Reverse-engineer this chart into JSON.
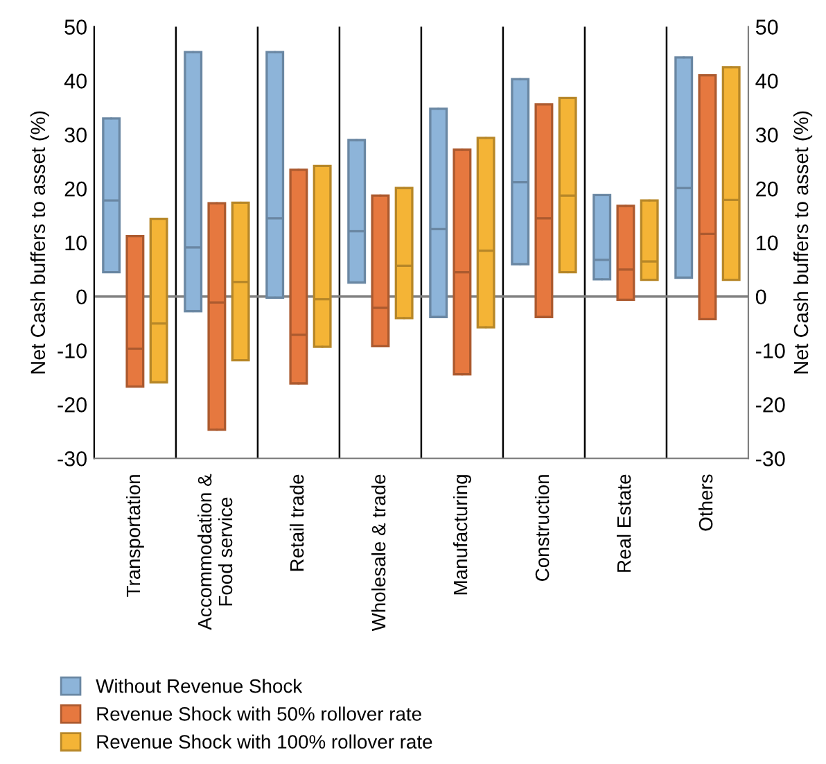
{
  "chart_data": {
    "type": "box",
    "ylabel": "Net Cash buffers to asset (%)",
    "y2label": "Net Cash buffers to asset (%)",
    "categories": [
      "Transportation",
      "Accommodation &\nFood service",
      "Retail trade",
      "Wholesale & trade",
      "Manufacturing",
      "Construction",
      "Real Estate",
      "Others"
    ],
    "ylim": [
      -30,
      50
    ],
    "yticks": [
      -30,
      -20,
      -10,
      0,
      10,
      20,
      30,
      40,
      50
    ],
    "y2lim": [
      -30,
      50
    ],
    "y2ticks": [
      -30,
      -20,
      -10,
      0,
      10,
      20,
      30,
      40,
      50
    ],
    "ref_lines": [
      {
        "axis": "y",
        "value": 0,
        "color": "#7f7f7f"
      }
    ],
    "legend": "bottom left",
    "grid": false,
    "series": [
      {
        "name": "Without Revenue Shock",
        "color": "#8db4d9",
        "boxes": [
          {
            "low": 4.5,
            "q1": 4.5,
            "median": 17.8,
            "q3": 33.0,
            "high": 33.0
          },
          {
            "low": -2.7,
            "q1": -2.7,
            "median": 9.1,
            "q3": 45.3,
            "high": 45.3
          },
          {
            "low": -0.2,
            "q1": -0.2,
            "median": 14.5,
            "q3": 45.3,
            "high": 45.3
          },
          {
            "low": 2.6,
            "q1": 2.6,
            "median": 12.1,
            "q3": 29.0,
            "high": 29.0
          },
          {
            "low": -3.8,
            "q1": -3.8,
            "median": 12.5,
            "q3": 34.8,
            "high": 34.8
          },
          {
            "low": 6.0,
            "q1": 6.0,
            "median": 21.2,
            "q3": 40.3,
            "high": 40.3
          },
          {
            "low": 3.2,
            "q1": 3.2,
            "median": 6.8,
            "q3": 18.8,
            "high": 18.8
          },
          {
            "low": 3.5,
            "q1": 3.5,
            "median": 20.1,
            "q3": 44.3,
            "high": 44.3
          }
        ]
      },
      {
        "name": "Revenue Shock with 50% rollover rate",
        "color": "#e6783f",
        "boxes": [
          {
            "low": -16.7,
            "q1": -16.7,
            "median": -9.7,
            "q3": 11.2,
            "high": 11.2
          },
          {
            "low": -24.7,
            "q1": -24.7,
            "median": -1.1,
            "q3": 17.3,
            "high": 17.3
          },
          {
            "low": -16.1,
            "q1": -16.1,
            "median": -7.1,
            "q3": 23.5,
            "high": 23.5
          },
          {
            "low": -9.2,
            "q1": -9.2,
            "median": -2.1,
            "q3": 18.7,
            "high": 18.7
          },
          {
            "low": -14.4,
            "q1": -14.4,
            "median": 4.5,
            "q3": 27.2,
            "high": 27.2
          },
          {
            "low": -3.8,
            "q1": -3.8,
            "median": 14.5,
            "q3": 35.6,
            "high": 35.6
          },
          {
            "low": -0.6,
            "q1": -0.6,
            "median": 5.0,
            "q3": 16.8,
            "high": 16.8
          },
          {
            "low": -4.2,
            "q1": -4.2,
            "median": 11.6,
            "q3": 41.0,
            "high": 41.0
          }
        ]
      },
      {
        "name": "Revenue Shock with 100% rollover rate",
        "color": "#f4b436",
        "boxes": [
          {
            "low": -15.9,
            "q1": -15.9,
            "median": -5.0,
            "q3": 14.4,
            "high": 14.4
          },
          {
            "low": -11.8,
            "q1": -11.8,
            "median": 2.7,
            "q3": 17.4,
            "high": 17.4
          },
          {
            "low": -9.3,
            "q1": -9.3,
            "median": -0.5,
            "q3": 24.2,
            "high": 24.2
          },
          {
            "low": -4.0,
            "q1": -4.0,
            "median": 5.7,
            "q3": 20.1,
            "high": 20.1
          },
          {
            "low": -5.7,
            "q1": -5.7,
            "median": 8.5,
            "q3": 29.4,
            "high": 29.4
          },
          {
            "low": 4.5,
            "q1": 4.5,
            "median": 18.7,
            "q3": 36.8,
            "high": 36.8
          },
          {
            "low": 3.1,
            "q1": 3.1,
            "median": 6.5,
            "q3": 17.8,
            "high": 17.8
          },
          {
            "low": 3.1,
            "q1": 3.1,
            "median": 17.9,
            "q3": 42.5,
            "high": 42.5
          }
        ]
      }
    ]
  }
}
